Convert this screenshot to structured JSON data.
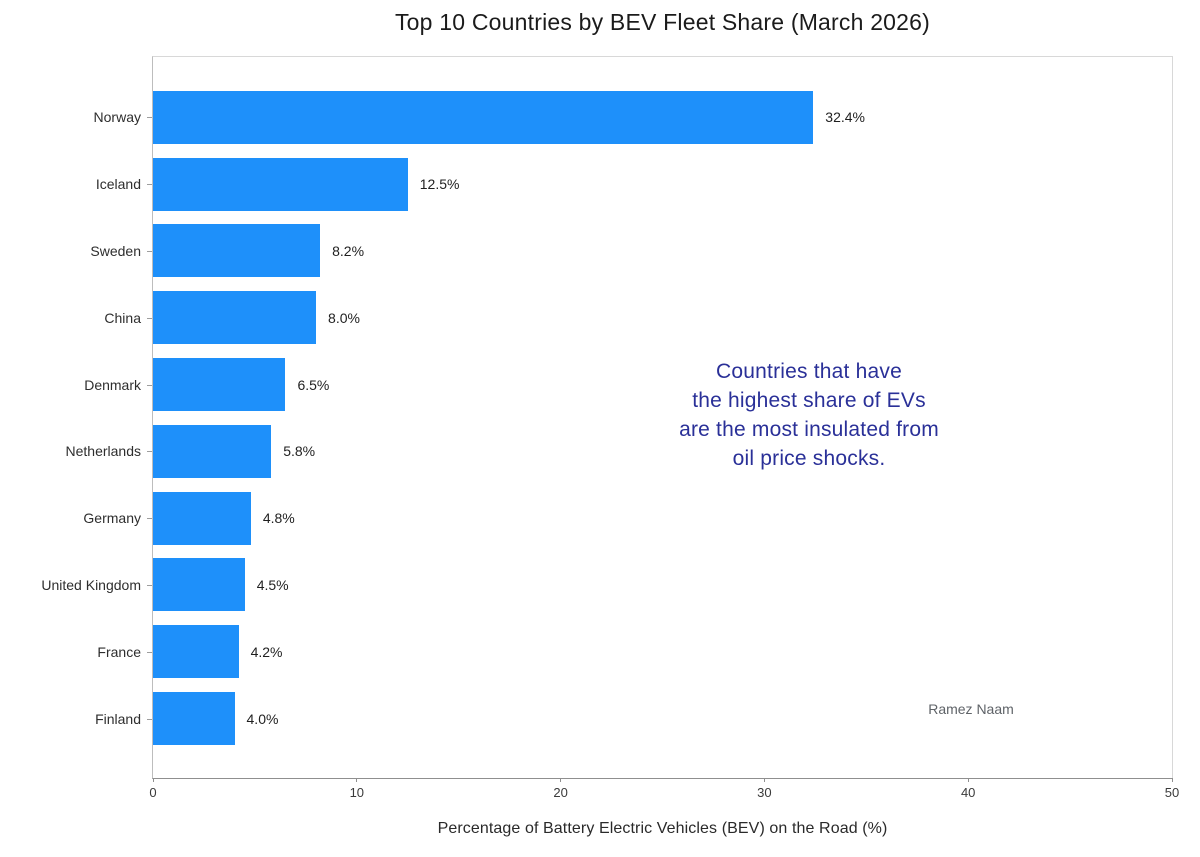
{
  "chart_data": {
    "type": "bar",
    "orientation": "horizontal",
    "title": "Top 10 Countries by BEV Fleet Share (March 2026)",
    "categories": [
      "Norway",
      "Iceland",
      "Sweden",
      "China",
      "Denmark",
      "Netherlands",
      "Germany",
      "United Kingdom",
      "France",
      "Finland"
    ],
    "values": [
      32.4,
      12.5,
      8.2,
      8.0,
      6.5,
      5.8,
      4.8,
      4.5,
      4.2,
      4.0
    ],
    "value_labels": [
      "32.4%",
      "12.5%",
      "8.2%",
      "8.0%",
      "6.5%",
      "5.8%",
      "4.8%",
      "4.5%",
      "4.2%",
      "4.0%"
    ],
    "xlabel": "Percentage of Battery Electric Vehicles (BEV) on the Road (%)",
    "ylabel": "",
    "xlim": [
      0,
      50
    ],
    "xticks": [
      0,
      10,
      20,
      30,
      40,
      50
    ],
    "grid": false,
    "legend": null,
    "bar_color": "#1e90fa",
    "annotation": {
      "text": "Countries that have\nthe highest share of EVs\nare the most insulated from\noil price shocks.",
      "color": "#2a3098"
    },
    "attribution": "Ramez Naam"
  },
  "colors": {
    "bar": "#1e90fa",
    "annotation": "#2a3098",
    "attribution_text": "#5f6368",
    "axis_spine": "#8f8f8f",
    "background": "#ffffff"
  }
}
